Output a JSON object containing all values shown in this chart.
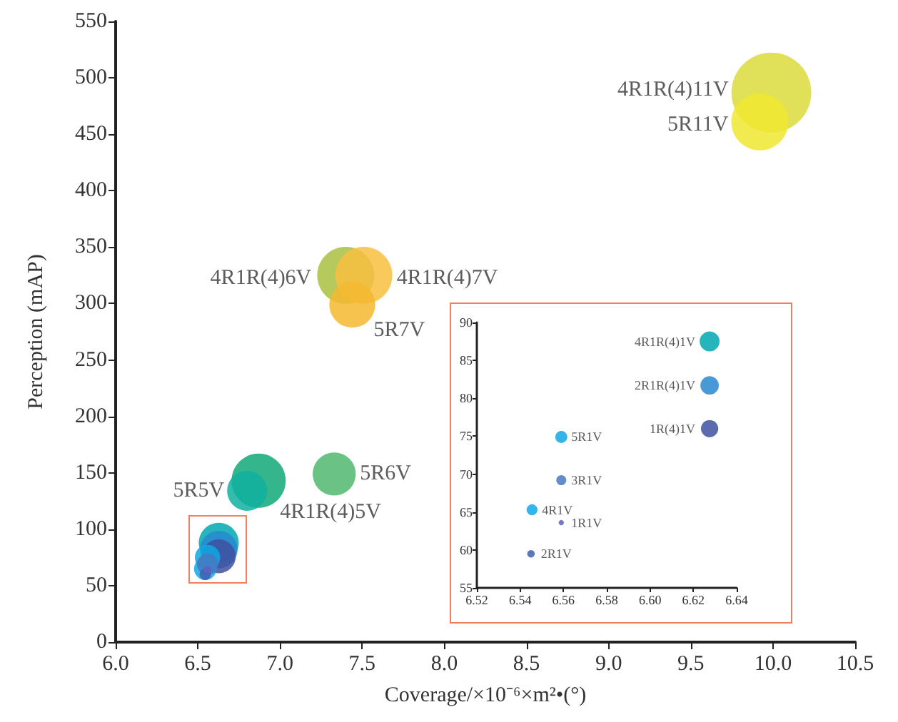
{
  "chart_data": [
    {
      "type": "bubble",
      "xlabel": "Coverage/×10⁻⁶×m²•(°)",
      "ylabel": "Perception (mAP)",
      "x": [
        9.99,
        9.92,
        7.4,
        7.51,
        7.44,
        6.87,
        6.8,
        7.33,
        6.6275,
        6.6275,
        6.6275,
        6.559,
        6.5455,
        6.559,
        6.545,
        6.559
      ],
      "values": [
        487,
        461,
        325,
        325,
        299,
        143,
        134,
        149,
        88,
        82,
        76,
        75,
        65,
        69,
        60,
        64
      ],
      "sizes": [
        1,
        0.51,
        0.51,
        0.51,
        0.33,
        0.46,
        0.25,
        0.29,
        0.25,
        0.22,
        0.18,
        0.1,
        0.08,
        0.07,
        0.02,
        0.01
      ],
      "colors": [
        "#dcdc3c",
        "#f0e830",
        "#a8c040",
        "#f8c040",
        "#f5b830",
        "#10a878",
        "#10b0a0",
        "#50b870",
        "#00a8b0",
        "#2888d0",
        "#4050a0",
        "#10a8e0",
        "#10a8e8",
        "#4878c0",
        "#4060b0",
        "#6060c0"
      ],
      "annotations": [
        {
          "text": "4R1R(4)11V",
          "x": 9.99,
          "y": 487
        },
        {
          "text": "5R11V",
          "x": 9.92,
          "y": 461
        },
        {
          "text": "4R1R(4)6V",
          "x": 7.4,
          "y": 325
        },
        {
          "text": "4R1R(4)7V",
          "x": 7.51,
          "y": 325
        },
        {
          "text": "5R7V",
          "x": 7.44,
          "y": 299
        },
        {
          "text": "5R6V",
          "x": 7.33,
          "y": 149
        },
        {
          "text": "5R5V",
          "x": 6.8,
          "y": 134
        },
        {
          "text": "4R1R(4)5V",
          "x": 6.87,
          "y": 143
        }
      ],
      "xlim": [
        6.0,
        10.5
      ],
      "ylim": [
        0,
        550
      ],
      "xticks": [
        {
          "value": 6,
          "label": "6.0"
        },
        6.5,
        {
          "value": 7,
          "label": "7.0"
        },
        7.5,
        {
          "value": 8,
          "label": "8.0"
        },
        8.5,
        {
          "value": 9,
          "label": "9.0"
        },
        9.5,
        {
          "value": 10,
          "label": "10.0"
        },
        10.5
      ],
      "yticks": [
        0,
        50,
        100,
        150,
        200,
        250,
        300,
        350,
        400,
        450,
        500,
        550
      ],
      "grid": false,
      "marker": "circle"
    },
    {
      "type": "bubble",
      "x": [
        6.6275,
        6.6275,
        6.6275,
        6.559,
        6.5455,
        6.559,
        6.545,
        6.559
      ],
      "values": [
        87.5,
        81.7,
        76.0,
        74.9,
        65.3,
        69.2,
        59.5,
        63.6
      ],
      "sizes": [
        1,
        0.85,
        0.75,
        0.36,
        0.3,
        0.25,
        0.14,
        0.07
      ],
      "colors": [
        "#00a8b0",
        "#2888d0",
        "#4050a0",
        "#10a8e0",
        "#10a8e8",
        "#4878c0",
        "#4060b0",
        "#6060c0"
      ],
      "annotations": [
        {
          "text": "4R1R(4)1V",
          "x": 6.6275,
          "y": 87.5
        },
        {
          "text": "2R1R(4)1V",
          "x": 6.6275,
          "y": 81.7
        },
        {
          "text": "1R(4)1V",
          "x": 6.6275,
          "y": 76.0
        },
        {
          "text": "5R1V",
          "x": 6.559,
          "y": 74.9
        },
        {
          "text": "4R1V",
          "x": 6.5455,
          "y": 65.3
        },
        {
          "text": "3R1V",
          "x": 6.559,
          "y": 69.2
        },
        {
          "text": "2R1V",
          "x": 6.545,
          "y": 59.5
        },
        {
          "text": "1R1V",
          "x": 6.559,
          "y": 63.6
        }
      ],
      "xlim": [
        6.52,
        6.64
      ],
      "ylim": [
        55,
        90
      ],
      "xticks": [
        {
          "value": 6.52,
          "label": "6.52"
        },
        {
          "value": 6.54,
          "label": "6.54"
        },
        {
          "value": 6.56,
          "label": "6.56"
        },
        {
          "value": 6.58,
          "label": "6.58"
        },
        {
          "value": 6.6,
          "label": "6.60"
        },
        {
          "value": 6.62,
          "label": "6.62"
        },
        {
          "value": 6.64,
          "label": "6.64"
        }
      ],
      "yticks": [
        55,
        60,
        65,
        70,
        75,
        80,
        85,
        90
      ],
      "grid": false,
      "marker": "circle"
    }
  ]
}
